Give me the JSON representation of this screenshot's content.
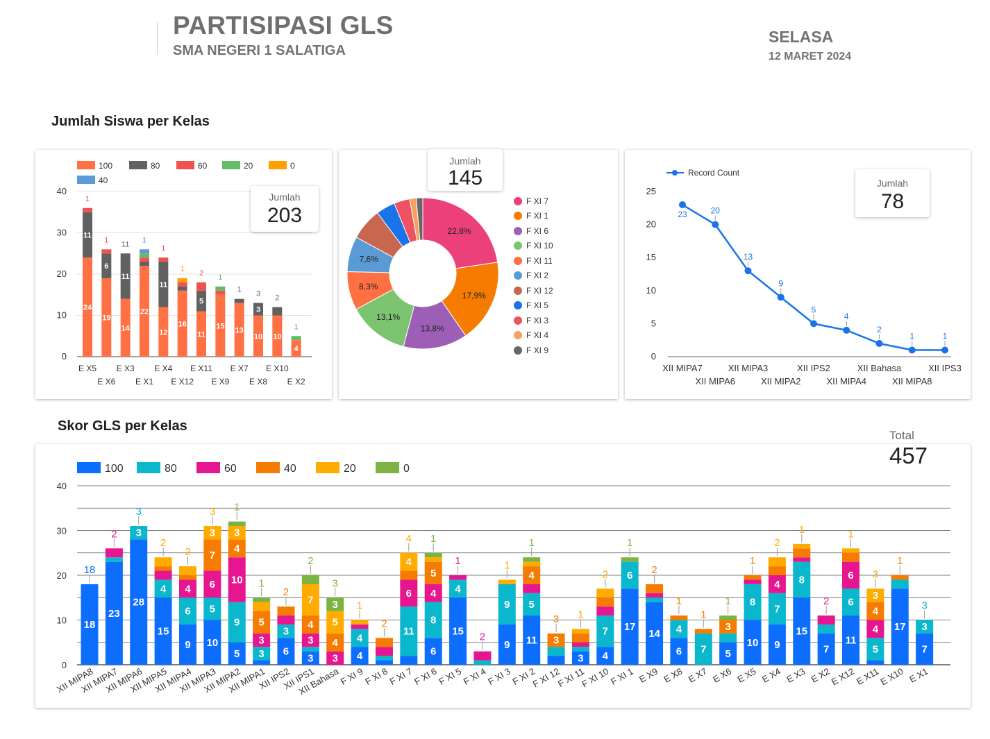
{
  "header": {
    "title": "PARTISIPASI GLS",
    "subtitle": "SMA NEGERI 1 SALATIGA",
    "day": "SELASA",
    "date": "12 MARET 2024"
  },
  "section1_title": "Jumlah Siswa per Kelas",
  "section2_title": "Skor GLS per Kelas",
  "colors": {
    "c100": "#ff7043",
    "c80": "#616161",
    "c60": "#ef5350",
    "c20": "#66bb6a",
    "c0": "#ffa000",
    "c40": "#5c9bd5",
    "s100": "#0d6efd",
    "s80": "#0ab7cc",
    "s60": "#e5168f",
    "s40": "#f57c00",
    "s20": "#ffab00",
    "s0": "#7cb342"
  },
  "chart_data": [
    {
      "type": "bar",
      "stacked": true,
      "title": "Jumlah Siswa per Kelas",
      "score_label": "Jumlah",
      "score_value": "203",
      "ylim": [
        0,
        40
      ],
      "yticks": [
        0,
        10,
        20,
        30,
        40
      ],
      "grid": true,
      "legend_position": "top-left",
      "categories": [
        "E X5",
        "E X6",
        "E X3",
        "E X1",
        "E X4",
        "E X12",
        "E X11",
        "E X9",
        "E X7",
        "E X8",
        "E X10",
        "E X2"
      ],
      "series": [
        {
          "name": "100",
          "values": [
            24,
            19,
            14,
            22,
            12,
            16,
            11,
            15,
            13,
            10,
            10,
            4
          ]
        },
        {
          "name": "80",
          "values": [
            11,
            6,
            11,
            1,
            11,
            1,
            5,
            0,
            1,
            3,
            2,
            0
          ]
        },
        {
          "name": "60",
          "values": [
            1,
            1,
            0,
            1,
            1,
            1,
            2,
            1,
            0,
            0,
            0,
            0
          ]
        },
        {
          "name": "20",
          "values": [
            0,
            0,
            0,
            1,
            0,
            0,
            0,
            1,
            0,
            0,
            0,
            1
          ]
        },
        {
          "name": "0",
          "values": [
            0,
            0,
            0,
            0,
            0,
            1,
            0,
            0,
            0,
            0,
            0,
            0
          ]
        },
        {
          "name": "40",
          "values": [
            0,
            0,
            0,
            1,
            0,
            0,
            0,
            0,
            0,
            0,
            0,
            0
          ]
        }
      ]
    },
    {
      "type": "pie",
      "donut": true,
      "score_label": "Jumlah",
      "score_value": "145",
      "legend_position": "right",
      "slices": [
        {
          "label": "F XI 7",
          "value": 22.8,
          "pct": "22,8%"
        },
        {
          "label": "F XI 1",
          "value": 17.9,
          "pct": "17,9%"
        },
        {
          "label": "F XI 6",
          "value": 13.8,
          "pct": "13,8%"
        },
        {
          "label": "F XI 10",
          "value": 13.1,
          "pct": "13,1%"
        },
        {
          "label": "F XI 11",
          "value": 8.3,
          "pct": "8,3%"
        },
        {
          "label": "F XI 2",
          "value": 7.6,
          "pct": "7,6%"
        },
        {
          "label": "F XI 12",
          "value": 6.9,
          "pct": ""
        },
        {
          "label": "F XI 5",
          "value": 4.1,
          "pct": ""
        },
        {
          "label": "F XI 3",
          "value": 3.4,
          "pct": ""
        },
        {
          "label": "F XI 4",
          "value": 1.4,
          "pct": ""
        },
        {
          "label": "F XI 9",
          "value": 1.4,
          "pct": ""
        }
      ],
      "colors": [
        "#ec407a",
        "#f57c00",
        "#9c5fb5",
        "#7cc46f",
        "#ff7043",
        "#5b9bd5",
        "#c8674f",
        "#1a73e8",
        "#ef5361",
        "#f4a261",
        "#666666"
      ]
    },
    {
      "type": "line",
      "score_label": "Jumlah",
      "score_value": "78",
      "ylim": [
        0,
        25
      ],
      "yticks": [
        0,
        5,
        10,
        15,
        20,
        25
      ],
      "legend_position": "top-left",
      "series_name": "Record Count",
      "color": "#1a73e8",
      "categories": [
        "XII MIPA7",
        "XII MIPA6",
        "XII MIPA3",
        "XII MIPA2",
        "XII IPS2",
        "XII MIPA4",
        "XII Bahasa",
        "XII MIPA8",
        "XII IPS3"
      ],
      "values": [
        23,
        20,
        13,
        9,
        5,
        4,
        2,
        1,
        1
      ]
    },
    {
      "type": "bar",
      "stacked": true,
      "title": "Skor GLS per Kelas",
      "total_label": "Total",
      "total_value": "457",
      "ylim": [
        0,
        40
      ],
      "yticks": [
        0,
        10,
        20,
        30,
        40
      ],
      "grid": true,
      "legend_position": "top-left",
      "categories": [
        "XII MIPA8",
        "XII MIPA7",
        "XII MIPA6",
        "XII MIPA5",
        "XII MIPA4",
        "XII MIPA3",
        "XII MIPA2",
        "XII MIPA1",
        "XII IPS2",
        "XII IPS1",
        "XII Bahasa",
        "F XI 9",
        "F XI 8",
        "F XI 7",
        "F XI 6",
        "F XI 5",
        "F XI 4",
        "F XI 3",
        "F XI 2",
        "F XI 12",
        "F XI 11",
        "F XI 10",
        "F XI 1",
        "E X9",
        "E X8",
        "E X7",
        "E X6",
        "E X5",
        "E X4",
        "E X3",
        "E X2",
        "E X12",
        "E X11",
        "E X10",
        "E X1"
      ],
      "series": [
        {
          "name": "100",
          "values": [
            18,
            23,
            28,
            15,
            9,
            10,
            5,
            1,
            6,
            3,
            0,
            4,
            1,
            2,
            6,
            15,
            0,
            9,
            11,
            2,
            3,
            4,
            17,
            14,
            6,
            0,
            5,
            10,
            9,
            15,
            7,
            11,
            1,
            17,
            7
          ]
        },
        {
          "name": "80",
          "values": [
            0,
            1,
            3,
            4,
            6,
            5,
            9,
            3,
            3,
            1,
            0,
            4,
            1,
            11,
            8,
            4,
            1,
            9,
            5,
            2,
            1,
            7,
            6,
            1,
            4,
            7,
            2,
            8,
            7,
            8,
            2,
            6,
            5,
            2,
            3
          ]
        },
        {
          "name": "60",
          "values": [
            0,
            2,
            0,
            2,
            4,
            6,
            10,
            3,
            2,
            3,
            3,
            1,
            2,
            6,
            4,
            1,
            2,
            0,
            2,
            0,
            1,
            2,
            0,
            1,
            0,
            0,
            0,
            1,
            4,
            1,
            2,
            6,
            4,
            0,
            0
          ]
        },
        {
          "name": "40",
          "values": [
            0,
            0,
            0,
            1,
            1,
            7,
            4,
            5,
            2,
            4,
            4,
            0,
            2,
            2,
            5,
            0,
            0,
            0,
            4,
            3,
            2,
            2,
            0,
            2,
            1,
            1,
            3,
            1,
            2,
            2,
            0,
            2,
            4,
            1,
            0
          ]
        },
        {
          "name": "20",
          "values": [
            0,
            0,
            0,
            2,
            2,
            3,
            3,
            2,
            0,
            7,
            5,
            1,
            0,
            4,
            1,
            0,
            0,
            1,
            1,
            0,
            1,
            2,
            0,
            0,
            0,
            0,
            0,
            0,
            2,
            1,
            0,
            1,
            3,
            0,
            0
          ]
        },
        {
          "name": "0",
          "values": [
            0,
            0,
            0,
            0,
            0,
            0,
            1,
            1,
            0,
            2,
            3,
            0,
            0,
            0,
            1,
            0,
            0,
            0,
            1,
            0,
            0,
            0,
            1,
            0,
            0,
            0,
            1,
            0,
            0,
            0,
            0,
            0,
            0,
            0,
            0
          ]
        }
      ]
    }
  ]
}
